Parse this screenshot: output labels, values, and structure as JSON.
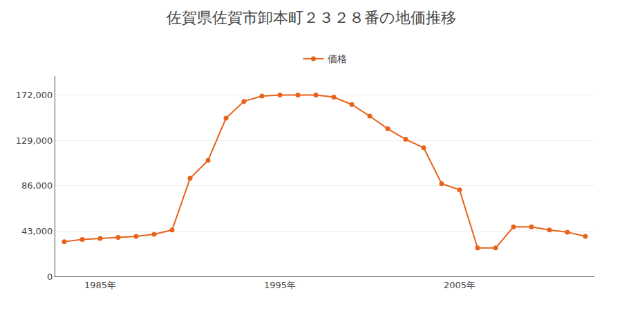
{
  "chart_data": {
    "type": "line",
    "title": "佐賀県佐賀市卸本町２３２８番の地価推移",
    "x": [
      1983,
      1984,
      1985,
      1986,
      1987,
      1988,
      1989,
      1990,
      1991,
      1992,
      1993,
      1994,
      1995,
      1996,
      1997,
      1998,
      1999,
      2000,
      2001,
      2002,
      2003,
      2004,
      2005,
      2006,
      2007,
      2008,
      2009,
      2010,
      2011,
      2012
    ],
    "series": [
      {
        "name": "価格",
        "color": "#E8621A",
        "marker": "circle",
        "line_style": "solid",
        "values": [
          33000,
          35000,
          36000,
          37000,
          38000,
          40000,
          44000,
          93000,
          110000,
          150000,
          166000,
          171000,
          172000,
          172000,
          172000,
          170000,
          163000,
          152000,
          140000,
          130000,
          122000,
          88000,
          82000,
          27000,
          27000,
          47000,
          47000,
          44000,
          42000,
          38000
        ]
      }
    ],
    "xlim": [
      1982.5,
      2012.5
    ],
    "xticks": [
      {
        "value": 1985,
        "label": "1985年"
      },
      {
        "value": 1995,
        "label": "1995年"
      },
      {
        "value": 2005,
        "label": "2005年"
      }
    ],
    "ylim": [
      0,
      190000
    ],
    "yticks": [
      0,
      {
        "value": 43000,
        "label": "43,000"
      },
      {
        "value": 86000,
        "label": "86,000"
      },
      {
        "value": 129000,
        "label": "129,000"
      },
      {
        "value": 172000,
        "label": "172,000"
      }
    ],
    "grid": "y",
    "legend": "top"
  }
}
